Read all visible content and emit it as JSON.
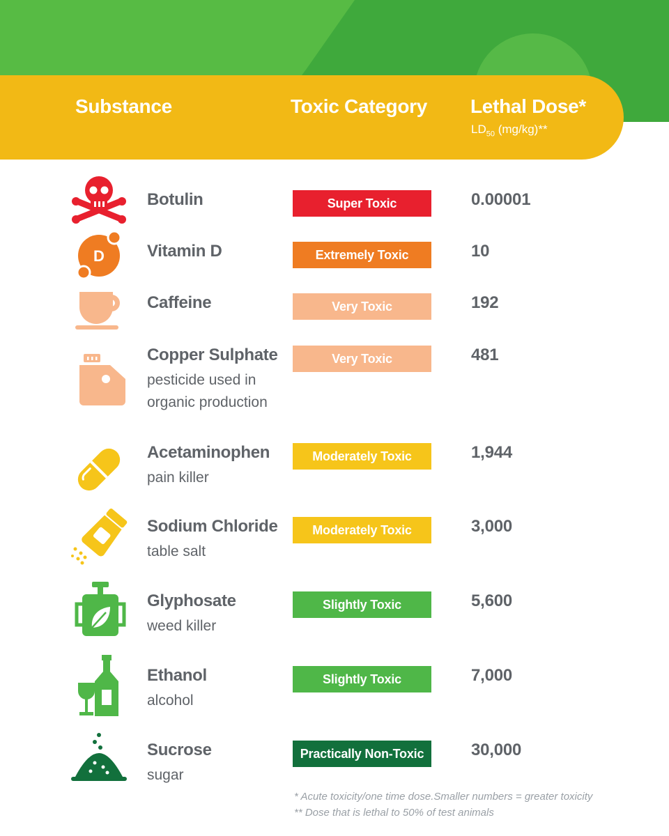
{
  "header": {
    "substance": "Substance",
    "category": "Toxic Category",
    "dose": "Lethal Dose*",
    "unit_prefix": "LD",
    "unit_sub": "50",
    "unit_suffix": " (mg/kg)**"
  },
  "colors": {
    "super_toxic": "#e8202e",
    "extremely_toxic": "#ef7c22",
    "very_toxic": "#f8b78c",
    "moderately_toxic": "#f6c51a",
    "slightly_toxic": "#4fb748",
    "practically_non_toxic": "#12703c",
    "header": "#f2b915",
    "top": "#3fa93c"
  },
  "rows": [
    {
      "name": "Botulin",
      "desc": "",
      "category": "Super Toxic",
      "dose": "0.00001",
      "icon": "skull-crossbones-icon"
    },
    {
      "name": "Vitamin D",
      "desc": "",
      "category": "Extremely Toxic",
      "dose": "10",
      "icon": "vitamin-d-icon",
      "icon_text": "D"
    },
    {
      "name": "Caffeine",
      "desc": "",
      "category": "Very Toxic",
      "dose": "192",
      "icon": "coffee-cup-icon"
    },
    {
      "name": "Copper Sulphate",
      "desc": "pesticide used in organic production",
      "category": "Very Toxic",
      "dose": "481",
      "icon": "jerrycan-icon"
    },
    {
      "name": "Acetaminophen",
      "desc": "pain killer",
      "category": "Moderately Toxic",
      "dose": "1,944",
      "icon": "capsule-icon"
    },
    {
      "name": "Sodium Chloride",
      "desc": "table salt",
      "category": "Moderately Toxic",
      "dose": "3,000",
      "icon": "salt-shaker-icon"
    },
    {
      "name": "Glyphosate",
      "desc": "weed killer",
      "category": "Slightly Toxic",
      "dose": "5,600",
      "icon": "sprayer-icon"
    },
    {
      "name": "Ethanol",
      "desc": "alcohol",
      "category": "Slightly Toxic",
      "dose": "7,000",
      "icon": "wine-bottle-glass-icon"
    },
    {
      "name": "Sucrose",
      "desc": "sugar",
      "category": "Practically Non-Toxic",
      "dose": "30,000",
      "icon": "sugar-pile-icon"
    }
  ],
  "footnotes": [
    "*   Acute toxicity/one time dose.Smaller numbers = greater toxicity",
    "**  Dose that is lethal to 50% of test animals"
  ]
}
